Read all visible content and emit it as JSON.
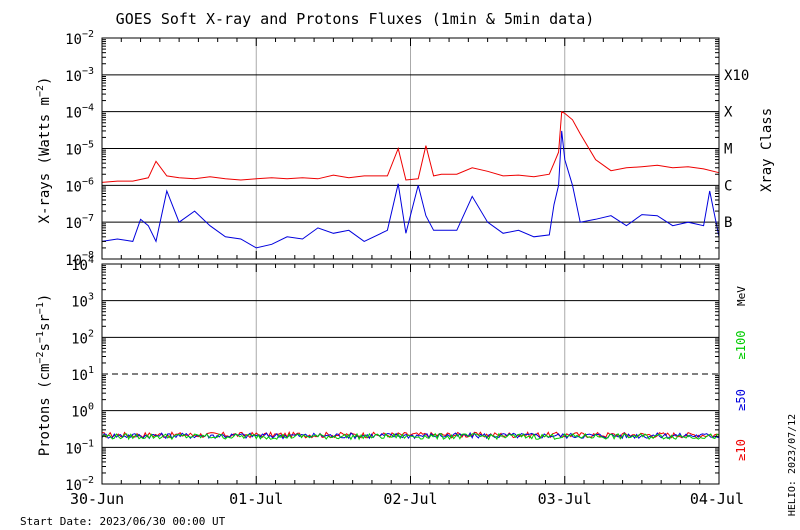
{
  "chart_data": {
    "type": "line",
    "title": "GOES Soft X-ray and Protons Fluxes   (1min & 5min data)",
    "footer": {
      "start_date": "Start Date: 2023/06/30 00:00 UT",
      "credit": "HELIO: 2023/07/12"
    },
    "x_axis": {
      "tick_labels": [
        "30-Jun",
        "01-Jul",
        "02-Jul",
        "03-Jul",
        "04-Jul"
      ],
      "range_days": [
        0,
        4
      ]
    },
    "xray_panel": {
      "ylabel": "X-rays (Watts m^-2)",
      "ylabel_base": "X-rays (Watts m",
      "ylabel_exp": "−2",
      "ylabel_close": ")",
      "scale": "log",
      "ylim_exp": [
        -8,
        -2
      ],
      "tick_exponents": [
        -8,
        -7,
        -6,
        -5,
        -4,
        -3,
        -2
      ],
      "class_axis_label": "Xray Class",
      "classes": [
        {
          "label": "X10",
          "exp": -3
        },
        {
          "label": "X",
          "exp": -4
        },
        {
          "label": "M",
          "exp": -5
        },
        {
          "label": "C",
          "exp": -6
        },
        {
          "label": "B",
          "exp": -7
        }
      ],
      "series": [
        {
          "color": "#ee0000",
          "x_days": [
            0,
            0.1,
            0.2,
            0.3,
            0.35,
            0.42,
            0.5,
            0.6,
            0.7,
            0.8,
            0.9,
            1.0,
            1.1,
            1.2,
            1.3,
            1.4,
            1.5,
            1.6,
            1.7,
            1.85,
            1.92,
            1.97,
            2.05,
            2.1,
            2.15,
            2.2,
            2.3,
            2.4,
            2.5,
            2.6,
            2.7,
            2.8,
            2.9,
            2.93,
            2.96,
            2.98,
            3.0,
            3.05,
            3.1,
            3.2,
            3.3,
            3.4,
            3.5,
            3.6,
            3.7,
            3.8,
            3.9,
            4.0
          ],
          "y": [
            1.2e-06,
            1.3e-06,
            1.3e-06,
            1.6e-06,
            4.5e-06,
            1.8e-06,
            1.6e-06,
            1.5e-06,
            1.7e-06,
            1.5e-06,
            1.4e-06,
            1.5e-06,
            1.6e-06,
            1.5e-06,
            1.6e-06,
            1.5e-06,
            1.9e-06,
            1.6e-06,
            1.8e-06,
            1.8e-06,
            1e-05,
            1.4e-06,
            1.5e-06,
            1.2e-05,
            1.8e-06,
            2e-06,
            2e-06,
            3e-06,
            2.4e-06,
            1.8e-06,
            1.9e-06,
            1.7e-06,
            2e-06,
            4e-06,
            8e-06,
            0.0001,
            9e-05,
            6e-05,
            2.5e-05,
            5e-06,
            2.5e-06,
            3e-06,
            3.2e-06,
            3.5e-06,
            3e-06,
            3.2e-06,
            2.8e-06,
            2.2e-06
          ]
        },
        {
          "color": "#0000dd",
          "x_days": [
            0,
            0.1,
            0.2,
            0.25,
            0.3,
            0.35,
            0.42,
            0.5,
            0.6,
            0.7,
            0.8,
            0.9,
            1.0,
            1.1,
            1.2,
            1.3,
            1.4,
            1.5,
            1.6,
            1.7,
            1.85,
            1.92,
            1.97,
            2.05,
            2.1,
            2.15,
            2.2,
            2.3,
            2.4,
            2.5,
            2.6,
            2.7,
            2.8,
            2.9,
            2.93,
            2.96,
            2.98,
            3.0,
            3.05,
            3.1,
            3.2,
            3.3,
            3.4,
            3.5,
            3.6,
            3.7,
            3.8,
            3.9,
            3.94,
            4.0
          ],
          "y": [
            3e-08,
            3.5e-08,
            3e-08,
            1.2e-07,
            8e-08,
            3e-08,
            7e-07,
            1e-07,
            2e-07,
            8e-08,
            4e-08,
            3.5e-08,
            2e-08,
            2.5e-08,
            4e-08,
            3.5e-08,
            7e-08,
            5e-08,
            6e-08,
            3e-08,
            6e-08,
            1.1e-06,
            5e-08,
            1e-06,
            1.5e-07,
            6e-08,
            6e-08,
            6e-08,
            5e-07,
            1e-07,
            5e-08,
            6e-08,
            4e-08,
            4.5e-08,
            3e-07,
            1e-06,
            3e-05,
            5e-06,
            1e-06,
            1e-07,
            1.2e-07,
            1.5e-07,
            8e-08,
            1.6e-07,
            1.5e-07,
            8e-08,
            1e-07,
            8e-08,
            7e-07,
            4e-08
          ]
        }
      ]
    },
    "proton_panel": {
      "ylabel_base": "Protons (cm",
      "ylabel_exp1": "−2",
      "ylabel_mid": "s",
      "ylabel_exp2": "−1",
      "ylabel_mid2": "sr",
      "ylabel_exp3": "−1",
      "ylabel_close": ")",
      "scale": "log",
      "ylim_exp": [
        -2,
        4
      ],
      "tick_exponents": [
        -2,
        -1,
        0,
        1,
        2,
        3,
        4
      ],
      "threshold_exp": 1,
      "unit_label": "MeV",
      "energy_labels": [
        {
          "label": "≥100",
          "color": "#00cc00"
        },
        {
          "label": "≥50",
          "color": "#0000dd"
        },
        {
          "label": "≥10",
          "color": "#ee0000"
        }
      ],
      "series": [
        {
          "name": "≥10",
          "color": "#ee0000",
          "x_days": [
            0,
            4
          ],
          "y": [
            0.22,
            0.22
          ]
        },
        {
          "name": "≥50",
          "color": "#0000dd",
          "x_days": [
            0,
            4
          ],
          "y": [
            0.21,
            0.21
          ]
        },
        {
          "name": "≥100",
          "color": "#00cc00",
          "x_days": [
            0,
            4
          ],
          "y": [
            0.2,
            0.2
          ]
        }
      ]
    }
  }
}
